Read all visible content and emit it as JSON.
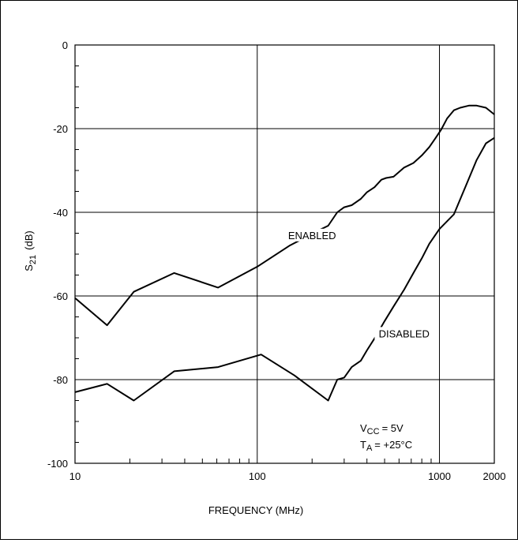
{
  "chart_data": {
    "type": "line",
    "title": "",
    "xlabel": "FREQUENCY (MHz)",
    "ylabel_main": "S",
    "ylabel_sub": "21",
    "ylabel_unit": "(dB)",
    "xscale": "log",
    "xlim": [
      10,
      2000
    ],
    "ylim": [
      -100,
      0
    ],
    "grid": true,
    "x_ticks": [
      {
        "value": 10,
        "label": "10"
      },
      {
        "value": 100,
        "label": "100"
      },
      {
        "value": 1000,
        "label": "1000"
      },
      {
        "value": 2000,
        "label": "2000"
      }
    ],
    "y_ticks": [
      {
        "value": 0,
        "label": "0"
      },
      {
        "value": -20,
        "label": "-20"
      },
      {
        "value": -40,
        "label": "-40"
      },
      {
        "value": -60,
        "label": "-60"
      },
      {
        "value": -80,
        "label": "-80"
      },
      {
        "value": -100,
        "label": "-100"
      }
    ],
    "series": [
      {
        "name": "ENABLED",
        "x": [
          10,
          15,
          21,
          35,
          61,
          100,
          150,
          220,
          245,
          275,
          300,
          330,
          370,
          400,
          440,
          480,
          510,
          560,
          640,
          720,
          800,
          880,
          950,
          1020,
          1100,
          1200,
          1300,
          1450,
          1600,
          1800,
          2000
        ],
        "y": [
          -60.5,
          -67,
          -59,
          -54.5,
          -58,
          -53,
          -48,
          -44.2,
          -43.2,
          -40,
          -38.8,
          -38.3,
          -36.8,
          -35.2,
          -34,
          -32.2,
          -31.8,
          -31.5,
          -29.3,
          -28.2,
          -26.4,
          -24.4,
          -22.3,
          -20.3,
          -17.6,
          -15.6,
          -15,
          -14.5,
          -14.5,
          -15,
          -16.6
        ]
      },
      {
        "name": "DISABLED",
        "x": [
          10,
          15,
          21,
          35,
          61,
          105,
          160,
          245,
          275,
          300,
          330,
          370,
          400,
          450,
          500,
          560,
          640,
          720,
          800,
          880,
          1000,
          1200,
          1400,
          1600,
          1800,
          2000
        ],
        "y": [
          -83,
          -81,
          -85,
          -78,
          -77,
          -74,
          -79,
          -85,
          -80,
          -79.5,
          -77,
          -75.5,
          -73,
          -69.5,
          -66,
          -62.5,
          -58.5,
          -54.5,
          -51,
          -47.5,
          -44,
          -40.5,
          -33.5,
          -27.5,
          -23.5,
          -22.2
        ]
      }
    ],
    "annotations": [
      {
        "text": "ENABLED",
        "x": 200,
        "y": -46
      },
      {
        "text": "DISABLED",
        "x": 640,
        "y": -69.5
      }
    ],
    "conditions": {
      "vcc_prefix": "V",
      "vcc_sub": "CC",
      "vcc_value": "= 5V",
      "ta_prefix": "T",
      "ta_sub": "A",
      "ta_value": "= +25°C"
    }
  }
}
